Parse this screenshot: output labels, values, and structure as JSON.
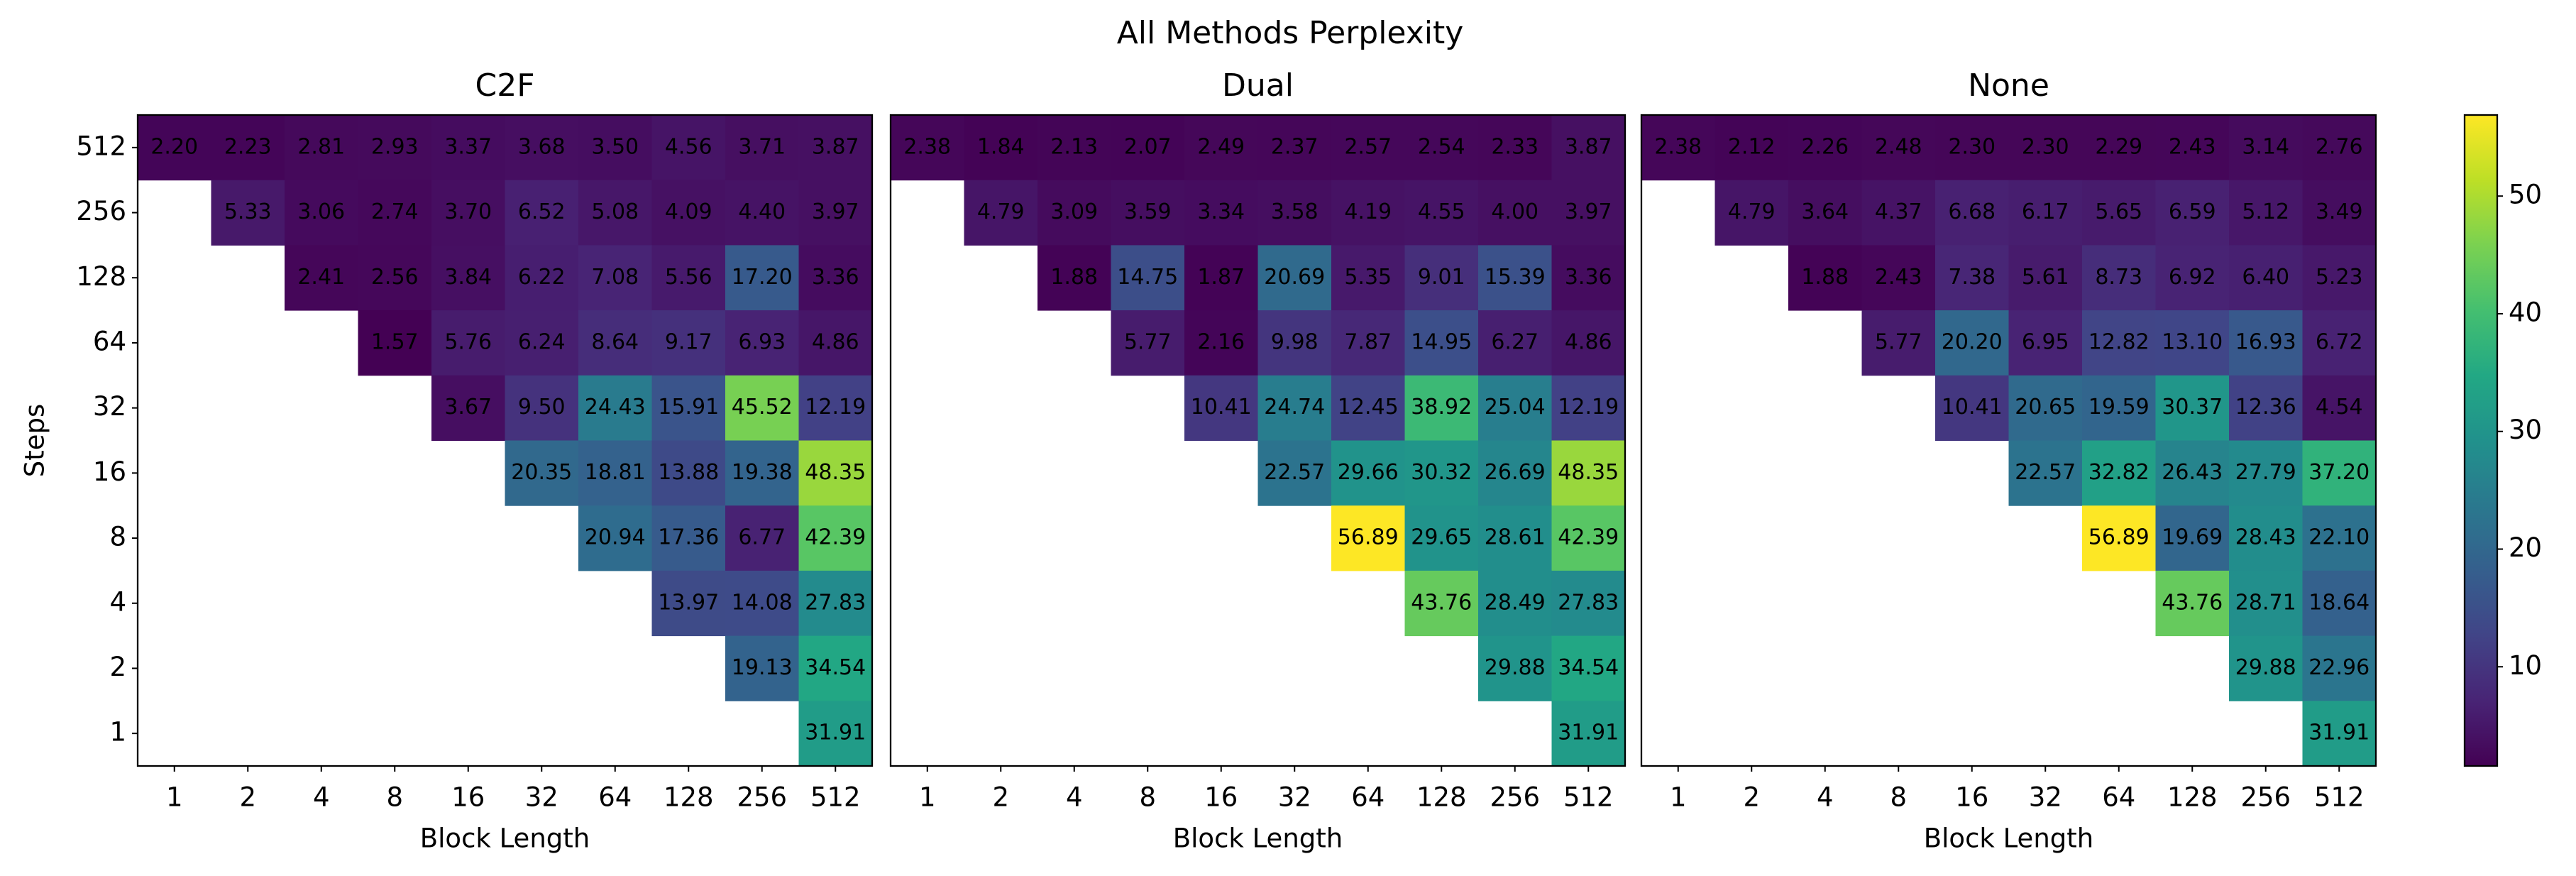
{
  "title": "All Methods Perplexity",
  "colorbar": {
    "colormap": "viridis",
    "lim": [
      1.57,
      56.89
    ],
    "ticks": [
      10,
      20,
      30,
      40,
      50
    ]
  },
  "chart_data": [
    {
      "type": "heatmap",
      "title": "C2F",
      "x_label": "Block Length",
      "y_label": "Steps",
      "categories": [
        1,
        2,
        4,
        8,
        16,
        32,
        64,
        128,
        256,
        512
      ],
      "y_categories": [
        512,
        256,
        128,
        64,
        32,
        16,
        8,
        4,
        2,
        1
      ],
      "values": [
        [
          2.2,
          2.23,
          2.81,
          2.93,
          3.37,
          3.68,
          3.5,
          4.56,
          3.71,
          3.87
        ],
        [
          null,
          5.33,
          3.06,
          2.74,
          3.7,
          6.52,
          5.08,
          4.09,
          4.4,
          3.97
        ],
        [
          null,
          null,
          2.41,
          2.56,
          3.84,
          6.22,
          7.08,
          5.56,
          17.2,
          3.36
        ],
        [
          null,
          null,
          null,
          1.57,
          5.76,
          6.24,
          8.64,
          9.17,
          6.93,
          4.86
        ],
        [
          null,
          null,
          null,
          null,
          3.67,
          9.5,
          24.43,
          15.91,
          45.52,
          12.19
        ],
        [
          null,
          null,
          null,
          null,
          null,
          20.35,
          18.81,
          13.88,
          19.38,
          48.35
        ],
        [
          null,
          null,
          null,
          null,
          null,
          null,
          20.94,
          17.36,
          6.77,
          42.39
        ],
        [
          null,
          null,
          null,
          null,
          null,
          null,
          null,
          13.97,
          14.08,
          27.83
        ],
        [
          null,
          null,
          null,
          null,
          null,
          null,
          null,
          null,
          19.13,
          34.54
        ],
        [
          null,
          null,
          null,
          null,
          null,
          null,
          null,
          null,
          null,
          31.91
        ]
      ],
      "value_labels": [
        [
          "2.20",
          "2.23",
          "2.81",
          "2.93",
          "3.37",
          "3.68",
          "3.50",
          "4.56",
          "3.71",
          "3.87"
        ],
        [
          null,
          "5.33",
          "3.06",
          "2.74",
          "3.70",
          "6.52",
          "5.08",
          "4.09",
          "4.40",
          "3.97"
        ],
        [
          null,
          null,
          "2.41",
          "2.56",
          "3.84",
          "6.22",
          "7.08",
          "5.56",
          "17.20",
          "3.36"
        ],
        [
          null,
          null,
          null,
          "1.57",
          "5.76",
          "6.24",
          "8.64",
          "9.17",
          "6.93",
          "4.86"
        ],
        [
          null,
          null,
          null,
          null,
          "3.67",
          "9.50",
          "24.43",
          "15.91",
          "45.52",
          "12.19"
        ],
        [
          null,
          null,
          null,
          null,
          null,
          "20.35",
          "18.81",
          "13.88",
          "19.38",
          "48.35"
        ],
        [
          null,
          null,
          null,
          null,
          null,
          null,
          "20.94",
          "17.36",
          "6.77",
          "42.39"
        ],
        [
          null,
          null,
          null,
          null,
          null,
          null,
          null,
          "13.97",
          "14.08",
          "27.83"
        ],
        [
          null,
          null,
          null,
          null,
          null,
          null,
          null,
          null,
          "19.13",
          "34.54"
        ],
        [
          null,
          null,
          null,
          null,
          null,
          null,
          null,
          null,
          null,
          "31.91"
        ]
      ]
    },
    {
      "type": "heatmap",
      "title": "Dual",
      "x_label": "Block Length",
      "categories": [
        1,
        2,
        4,
        8,
        16,
        32,
        64,
        128,
        256,
        512
      ],
      "values": [
        [
          2.38,
          1.84,
          2.13,
          2.07,
          2.49,
          2.37,
          2.57,
          2.54,
          2.33,
          3.87
        ],
        [
          null,
          4.79,
          3.09,
          3.59,
          3.34,
          3.58,
          4.19,
          4.55,
          4.0,
          3.97
        ],
        [
          null,
          null,
          1.88,
          14.75,
          1.87,
          20.69,
          5.35,
          9.01,
          15.39,
          3.36
        ],
        [
          null,
          null,
          null,
          5.77,
          2.16,
          9.98,
          7.87,
          14.95,
          6.27,
          4.86
        ],
        [
          null,
          null,
          null,
          null,
          10.41,
          24.74,
          12.45,
          38.92,
          25.04,
          12.19
        ],
        [
          null,
          null,
          null,
          null,
          null,
          22.57,
          29.66,
          30.32,
          26.69,
          48.35
        ],
        [
          null,
          null,
          null,
          null,
          null,
          null,
          56.89,
          29.65,
          28.61,
          42.39
        ],
        [
          null,
          null,
          null,
          null,
          null,
          null,
          null,
          43.76,
          28.49,
          27.83
        ],
        [
          null,
          null,
          null,
          null,
          null,
          null,
          null,
          null,
          29.88,
          34.54
        ],
        [
          null,
          null,
          null,
          null,
          null,
          null,
          null,
          null,
          null,
          31.91
        ]
      ],
      "value_labels": [
        [
          "2.38",
          "1.84",
          "2.13",
          "2.07",
          "2.49",
          "2.37",
          "2.57",
          "2.54",
          "2.33",
          "3.87"
        ],
        [
          null,
          "4.79",
          "3.09",
          "3.59",
          "3.34",
          "3.58",
          "4.19",
          "4.55",
          "4.00",
          "3.97"
        ],
        [
          null,
          null,
          "1.88",
          "14.75",
          "1.87",
          "20.69",
          "5.35",
          "9.01",
          "15.39",
          "3.36"
        ],
        [
          null,
          null,
          null,
          "5.77",
          "2.16",
          "9.98",
          "7.87",
          "14.95",
          "6.27",
          "4.86"
        ],
        [
          null,
          null,
          null,
          null,
          "10.41",
          "24.74",
          "12.45",
          "38.92",
          "25.04",
          "12.19"
        ],
        [
          null,
          null,
          null,
          null,
          null,
          "22.57",
          "29.66",
          "30.32",
          "26.69",
          "48.35"
        ],
        [
          null,
          null,
          null,
          null,
          null,
          null,
          "56.89",
          "29.65",
          "28.61",
          "42.39"
        ],
        [
          null,
          null,
          null,
          null,
          null,
          null,
          null,
          "43.76",
          "28.49",
          "27.83"
        ],
        [
          null,
          null,
          null,
          null,
          null,
          null,
          null,
          null,
          "29.88",
          "34.54"
        ],
        [
          null,
          null,
          null,
          null,
          null,
          null,
          null,
          null,
          null,
          "31.91"
        ]
      ]
    },
    {
      "type": "heatmap",
      "title": "None",
      "x_label": "Block Length",
      "categories": [
        1,
        2,
        4,
        8,
        16,
        32,
        64,
        128,
        256,
        512
      ],
      "values": [
        [
          2.38,
          2.12,
          2.26,
          2.48,
          2.3,
          2.3,
          2.29,
          2.43,
          3.14,
          2.76
        ],
        [
          null,
          4.79,
          3.64,
          4.37,
          6.68,
          6.17,
          5.65,
          6.59,
          5.12,
          3.49
        ],
        [
          null,
          null,
          1.88,
          2.43,
          7.38,
          5.61,
          8.73,
          6.92,
          6.4,
          5.23
        ],
        [
          null,
          null,
          null,
          5.77,
          20.2,
          6.95,
          12.82,
          13.1,
          16.93,
          6.72
        ],
        [
          null,
          null,
          null,
          null,
          10.41,
          20.65,
          19.59,
          30.37,
          12.36,
          4.54
        ],
        [
          null,
          null,
          null,
          null,
          null,
          22.57,
          32.82,
          26.43,
          27.79,
          37.2
        ],
        [
          null,
          null,
          null,
          null,
          null,
          null,
          56.89,
          19.69,
          28.43,
          22.1
        ],
        [
          null,
          null,
          null,
          null,
          null,
          null,
          null,
          43.76,
          28.71,
          18.64
        ],
        [
          null,
          null,
          null,
          null,
          null,
          null,
          null,
          null,
          29.88,
          22.96
        ],
        [
          null,
          null,
          null,
          null,
          null,
          null,
          null,
          null,
          null,
          31.91
        ]
      ],
      "value_labels": [
        [
          "2.38",
          "2.12",
          "2.26",
          "2.48",
          "2.30",
          "2.30",
          "2.29",
          "2.43",
          "3.14",
          "2.76"
        ],
        [
          null,
          "4.79",
          "3.64",
          "4.37",
          "6.68",
          "6.17",
          "5.65",
          "6.59",
          "5.12",
          "3.49"
        ],
        [
          null,
          null,
          "1.88",
          "2.43",
          "7.38",
          "5.61",
          "8.73",
          "6.92",
          "6.40",
          "5.23"
        ],
        [
          null,
          null,
          null,
          "5.77",
          "20.20",
          "6.95",
          "12.82",
          "13.10",
          "16.93",
          "6.72"
        ],
        [
          null,
          null,
          null,
          null,
          "10.41",
          "20.65",
          "19.59",
          "30.37",
          "12.36",
          "4.54"
        ],
        [
          null,
          null,
          null,
          null,
          null,
          "22.57",
          "32.82",
          "26.43",
          "27.79",
          "37.20"
        ],
        [
          null,
          null,
          null,
          null,
          null,
          null,
          "56.89",
          "19.69",
          "28.43",
          "22.10"
        ],
        [
          null,
          null,
          null,
          null,
          null,
          null,
          null,
          "43.76",
          "28.71",
          "18.64"
        ],
        [
          null,
          null,
          null,
          null,
          null,
          null,
          null,
          null,
          "29.88",
          "22.96"
        ],
        [
          null,
          null,
          null,
          null,
          null,
          null,
          null,
          null,
          null,
          "31.91"
        ]
      ]
    }
  ]
}
